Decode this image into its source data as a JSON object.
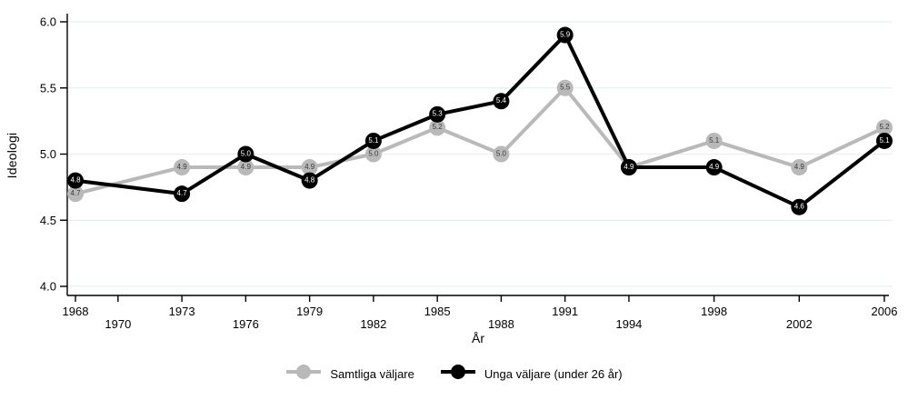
{
  "figure": {
    "background": "#ffffff",
    "ylabel": "Ideologi",
    "xlabel": "År"
  },
  "legend": {
    "items": [
      {
        "label": "Samtliga väljare",
        "color": "#b9b9b9"
      },
      {
        "label": "Unga väljare (under 26 år)",
        "color": "#000000"
      }
    ]
  },
  "chart_data": {
    "type": "line",
    "title": "",
    "xlabel": "År",
    "ylabel": "Ideologi",
    "x": [
      1968,
      1973,
      1976,
      1979,
      1982,
      1985,
      1988,
      1991,
      1994,
      1998,
      2002,
      2006
    ],
    "x_ticks": [
      1968,
      1970,
      1973,
      1976,
      1979,
      1982,
      1985,
      1988,
      1991,
      1994,
      1998,
      2002,
      2006
    ],
    "y_ticks": [
      4.0,
      4.5,
      5.0,
      5.5,
      6.0
    ],
    "xlim": [
      1968,
      2006
    ],
    "ylim": [
      4.0,
      6.0
    ],
    "grid": true,
    "legend_position": "bottom",
    "marker_data_labels": true,
    "series": [
      {
        "name": "Samtliga väljare",
        "color": "#b9b9b9",
        "label_color": "#3a3a3a",
        "values": [
          4.7,
          4.9,
          4.9,
          4.9,
          5.0,
          5.2,
          5.0,
          5.5,
          4.9,
          5.1,
          4.9,
          5.2
        ]
      },
      {
        "name": "Unga väljare (under 26 år)",
        "color": "#000000",
        "label_color": "#ffffff",
        "values": [
          4.8,
          4.7,
          5.0,
          4.8,
          5.1,
          5.3,
          5.4,
          5.9,
          4.9,
          4.9,
          4.6,
          5.1
        ]
      }
    ],
    "colors": {
      "grid": "#e6f0f1",
      "axis": "#000000",
      "tick_text": "#000000"
    }
  }
}
